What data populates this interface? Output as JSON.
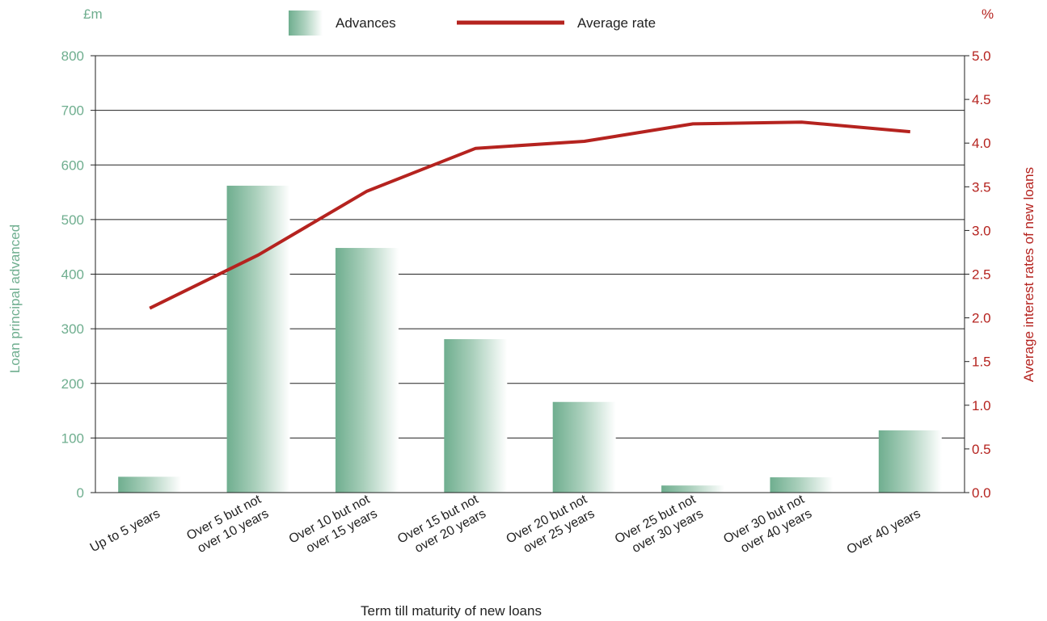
{
  "colors": {
    "bar_dark": "#6fae8f",
    "bar_light": "#ffffff",
    "line": "#b5231f",
    "left_axis_text": "#6fae8f",
    "right_axis_text": "#b5231f",
    "gridline": "#222222"
  },
  "chart_data": {
    "type": "bar",
    "xlabel": "Term till maturity of new loans",
    "ylabel_left": "Loan principal advanced",
    "ylabel_right": "Average interest rates of new loans",
    "unit_left": "£m",
    "unit_right": "%",
    "categories": [
      [
        "Up to 5 years"
      ],
      [
        "Over 5 but not",
        "over 10 years"
      ],
      [
        "Over 10 but not",
        "over 15 years"
      ],
      [
        "Over 15 but not",
        "over 20 years"
      ],
      [
        "Over 20 but not",
        "over 25 years"
      ],
      [
        "Over 25 but not",
        "over 30 years"
      ],
      [
        "Over 30 but not",
        "over 40 years"
      ],
      [
        "Over 40 years"
      ]
    ],
    "ylim_left": [
      0,
      800
    ],
    "ylim_right": [
      0,
      5
    ],
    "yticks_left": [
      "0",
      "100",
      "200",
      "300",
      "400",
      "500",
      "600",
      "700",
      "800"
    ],
    "yticks_right": [
      "0.0",
      "0.5",
      "1.0",
      "1.5",
      "2.0",
      "2.5",
      "3.0",
      "3.5",
      "4.0",
      "4.5",
      "5.0"
    ],
    "grid": true,
    "legend_position": "top",
    "series": [
      {
        "name": "Advances",
        "type": "bar",
        "axis": "left",
        "values": [
          29,
          562,
          448,
          281,
          166,
          13,
          28,
          114
        ]
      },
      {
        "name": "Average rate",
        "type": "line",
        "axis": "right",
        "values": [
          2.11,
          2.72,
          3.45,
          3.94,
          4.02,
          4.22,
          4.24,
          4.13
        ]
      }
    ]
  }
}
